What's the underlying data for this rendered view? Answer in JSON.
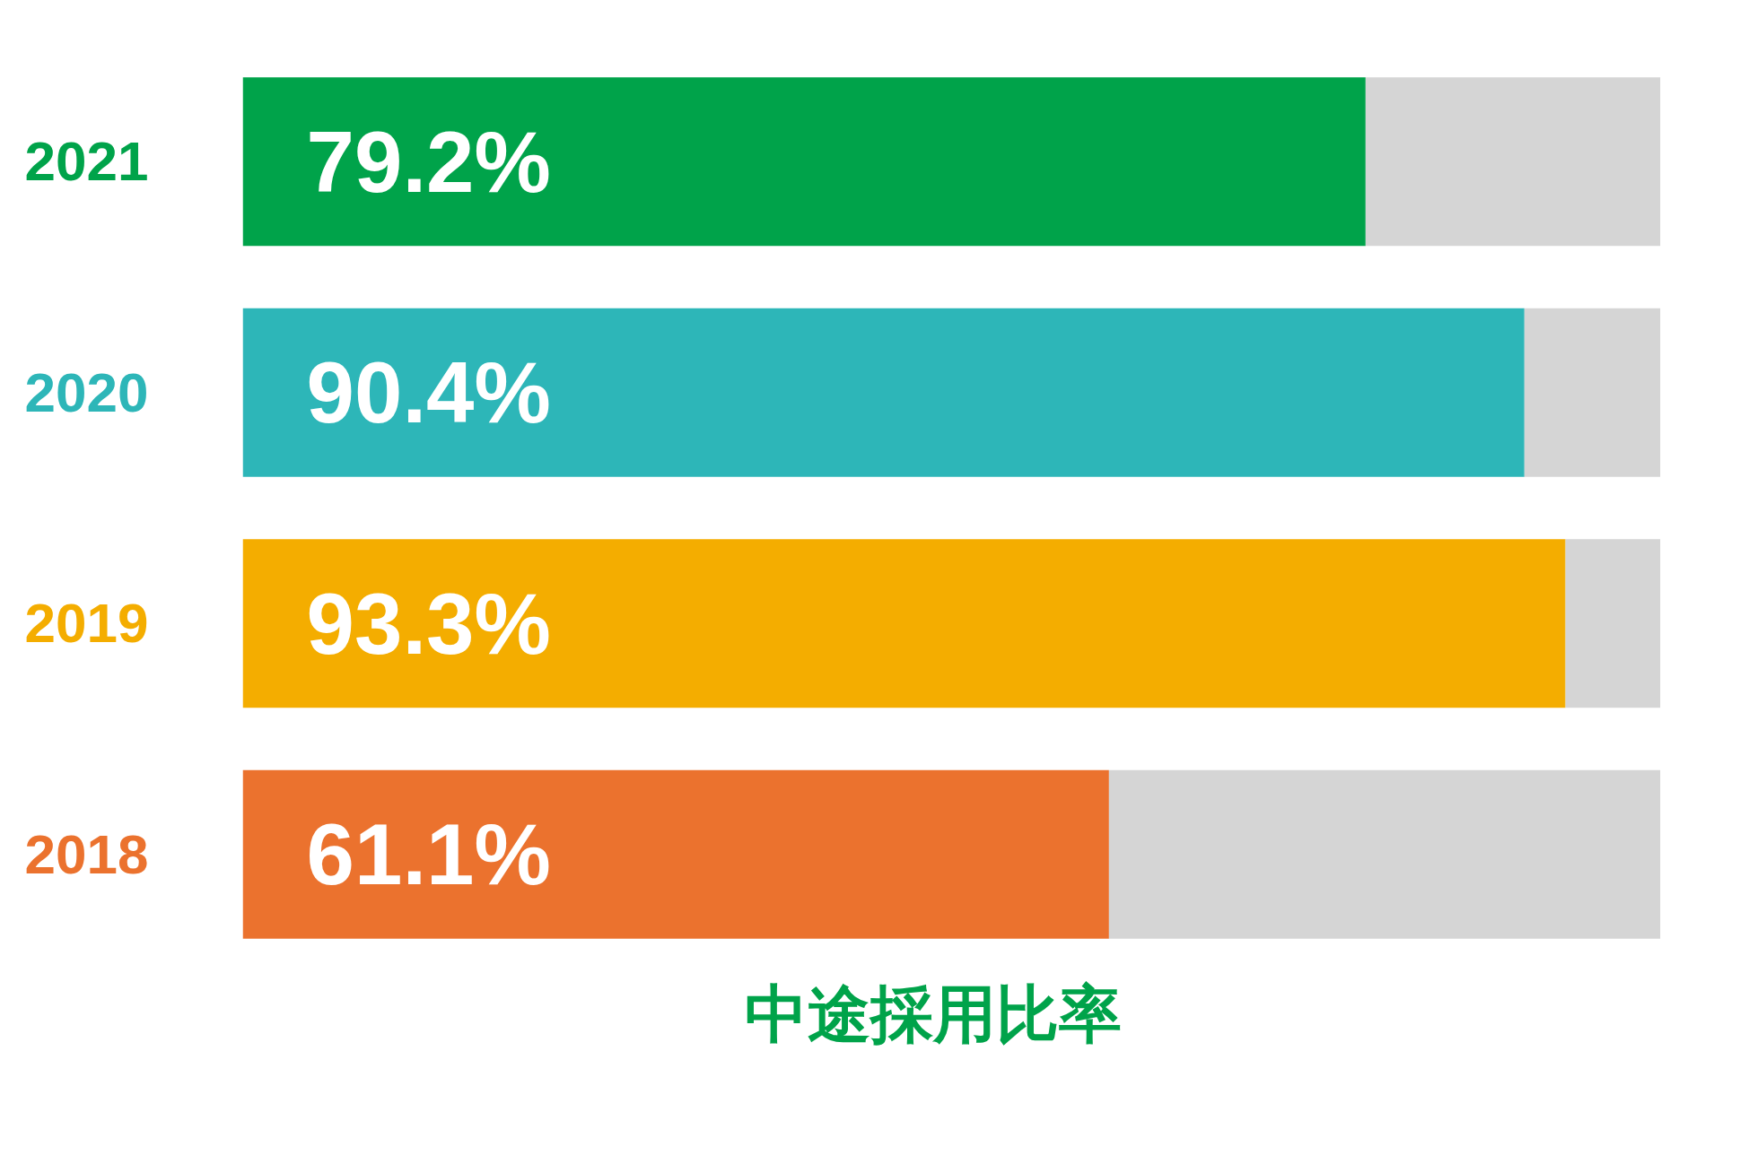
{
  "chart_data": {
    "type": "bar",
    "orientation": "horizontal",
    "stacked": true,
    "title": "中途採用比率",
    "categories": [
      "2021",
      "2020",
      "2019",
      "2018"
    ],
    "xlim": [
      0,
      100
    ],
    "tick_labels": "y",
    "grid": false,
    "series": [
      {
        "colors": [
          "#00a34a",
          "#2db6b8",
          "#f4ad00",
          "#eb722e"
        ],
        "values": [
          79.2,
          90.4,
          93.3,
          61.1
        ],
        "value_labels": [
          "79.2%",
          "90.4%",
          "93.3%",
          "61.1%"
        ]
      },
      {
        "color": "#d5d5d5",
        "values": [
          20.8,
          9.6,
          6.7,
          38.9
        ]
      }
    ]
  }
}
